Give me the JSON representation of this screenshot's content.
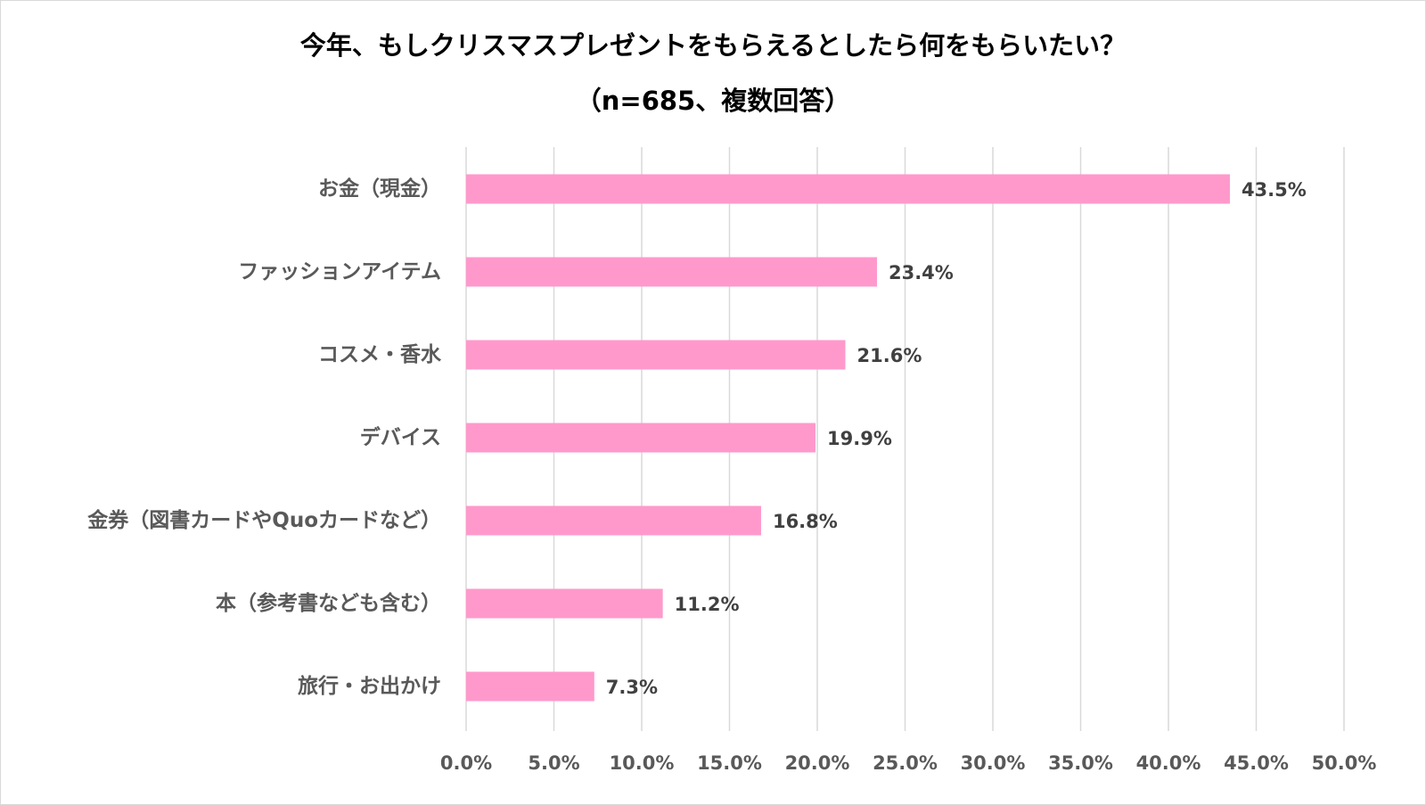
{
  "chart_data": {
    "type": "bar",
    "orientation": "horizontal",
    "title": "今年、もしクリスマスプレゼントをもらえるとしたら何をもらいたい？",
    "subtitle": "（n=685、複数回答）",
    "categories": [
      "お金（現金）",
      "ファッションアイテム",
      "コスメ・香水",
      "デバイス",
      "金券（図書カードやQuoカードなど）",
      "本（参考書なども含む）",
      "旅行・お出かけ"
    ],
    "values": [
      43.5,
      23.4,
      21.6,
      19.9,
      16.8,
      11.2,
      7.3
    ],
    "value_labels": [
      "43.5%",
      "23.4%",
      "21.6%",
      "19.9%",
      "16.8%",
      "11.2%",
      "7.3%"
    ],
    "xlim": [
      0,
      50
    ],
    "ticks": [
      0,
      5,
      10,
      15,
      20,
      25,
      30,
      35,
      40,
      45,
      50
    ],
    "tick_labels": [
      "0.0%",
      "5.0%",
      "10.0%",
      "15.0%",
      "20.0%",
      "25.0%",
      "30.0%",
      "35.0%",
      "40.0%",
      "45.0%",
      "50.0%"
    ],
    "grid": true,
    "legend": "none",
    "bar_color": "#ff99cc"
  }
}
